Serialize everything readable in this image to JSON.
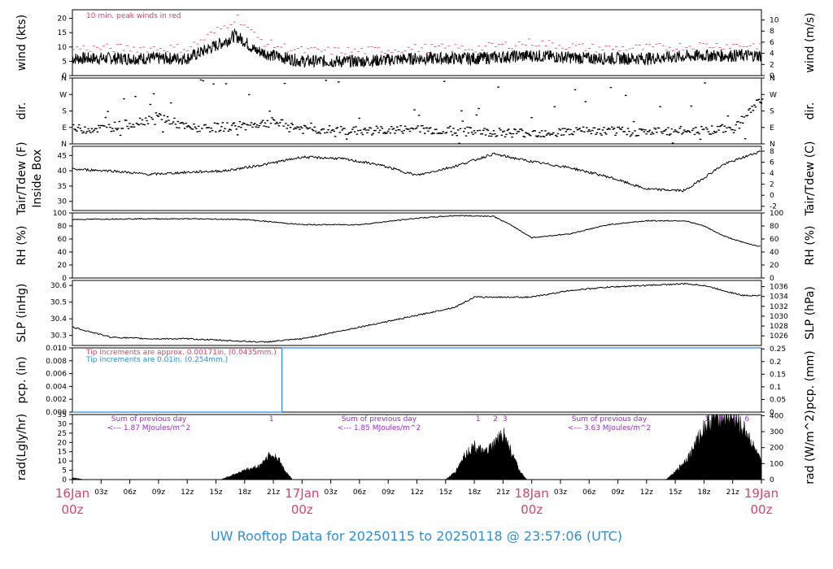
{
  "chart_data": {
    "type": "line",
    "title": "UW Rooftop Data for 20250115  to  20250118 @ 23:57:06  (UTC)",
    "x_axis": {
      "start": "2025-01-16T00:00Z",
      "end": "2025-01-19T00:00Z",
      "hour_ticks": [
        "03z",
        "06z",
        "09z",
        "12z",
        "15z",
        "18z",
        "21z"
      ],
      "day_labels": [
        {
          "date": "16Jan",
          "time": "00z"
        },
        {
          "date": "17Jan",
          "time": "00z"
        },
        {
          "date": "18Jan",
          "time": "00z"
        },
        {
          "date": "19Jan",
          "time": "00z"
        }
      ]
    },
    "panels": [
      {
        "id": "wind",
        "ylabel_left": "wind (kts)",
        "ylabel_right": "wind (m/s)",
        "yticks_left": [
          "0",
          "5",
          "10",
          "15",
          "20"
        ],
        "ylim_left": [
          0,
          23
        ],
        "yticks_right": [
          "0",
          "2",
          "4",
          "6",
          "8",
          "10"
        ],
        "annotation": "10 min. peak winds in red",
        "series": [
          {
            "color": "#000000",
            "hours": [
              0,
              6,
              12,
              14,
              16,
              17,
              18,
              19,
              20,
              21,
              24,
              30,
              36,
              42,
              48,
              54,
              60,
              66,
              72
            ],
            "values": [
              6,
              6,
              6,
              9,
              12,
              14,
              12,
              9,
              8,
              7,
              5,
              5,
              6,
              6,
              7,
              6,
              6,
              7,
              7
            ]
          },
          {
            "color": "#e0406a",
            "hours": [
              0,
              6,
              12,
              14,
              16,
              17,
              18,
              19,
              20,
              21,
              24,
              30,
              36,
              42,
              48,
              54,
              60,
              66,
              72
            ],
            "values": [
              9,
              9,
              9,
              13,
              17,
              20,
              17,
              13,
              11,
              10,
              8,
              8,
              9,
              9,
              11,
              9,
              9,
              10,
              10
            ]
          }
        ]
      },
      {
        "id": "dir",
        "ylabel_left": "dir.",
        "ylabel_right": "dir.",
        "yticks_left": [
          "N",
          "E",
          "S",
          "W",
          "N"
        ],
        "yticks_right": [
          "N",
          "E",
          "S",
          "W",
          "N"
        ],
        "ylim_left": [
          0,
          360
        ],
        "series": [
          {
            "color": "#000000",
            "hours": [
              0,
              3,
              6,
              9,
              12,
              15,
              18,
              21,
              24,
              30,
              36,
              42,
              48,
              54,
              60,
              66,
              69,
              72
            ],
            "values": [
              80,
              85,
              110,
              150,
              85,
              90,
              100,
              120,
              80,
              70,
              80,
              65,
              60,
              70,
              65,
              75,
              85,
              250
            ]
          }
        ]
      },
      {
        "id": "temp",
        "ylabel_left": "Tair/Tdew (F)",
        "ylabel_left2": "Inside Box",
        "ylabel_right": "Tair/Tdew (C)",
        "yticks_left": [
          "30",
          "35",
          "40",
          "45"
        ],
        "ylim_left": [
          27,
          48
        ],
        "yticks_right": [
          "-2",
          "0",
          "2",
          "4",
          "6",
          "8"
        ],
        "series": [
          {
            "color": "#000000",
            "hours": [
              0,
              4,
              8,
              12,
              16,
              20,
              24,
              28,
              32,
              36,
              40,
              44,
              48,
              52,
              56,
              60,
              64,
              68,
              72
            ],
            "values": [
              40.5,
              40,
              38.8,
              39.5,
              40,
              42,
              44.5,
              44,
              42,
              38.5,
              41.5,
              45.5,
              43,
              41,
              38,
              34,
              33.5,
              42,
              46.5
            ]
          }
        ]
      },
      {
        "id": "rh",
        "ylabel_left": "RH (%)",
        "ylabel_right": "RH (%)",
        "yticks_left": [
          "0",
          "20",
          "40",
          "60",
          "80",
          "100"
        ],
        "ylim_left": [
          0,
          100
        ],
        "yticks_right": [
          "0",
          "20",
          "40",
          "60",
          "80",
          "100"
        ],
        "series": [
          {
            "color": "#000000",
            "hours": [
              0,
              6,
              12,
              18,
              24,
              30,
              36,
              40,
              44,
              46,
              48,
              52,
              56,
              60,
              64,
              66,
              68,
              70,
              72
            ],
            "values": [
              90,
              91,
              91,
              90,
              82,
              82,
              92,
              96,
              95,
              80,
              62,
              68,
              82,
              88,
              88,
              80,
              65,
              55,
              48
            ]
          }
        ]
      },
      {
        "id": "slp",
        "ylabel_left": "SLP (inHg)",
        "ylabel_right": "SLP (hPa)",
        "yticks_left": [
          "30.3",
          "30.4",
          "30.5",
          "30.6"
        ],
        "ylim_left": [
          30.24,
          30.63
        ],
        "yticks_right": [
          "1026",
          "1028",
          "1030",
          "1032",
          "1034",
          "1036"
        ],
        "series": [
          {
            "color": "#000000",
            "hours": [
              0,
              4,
              8,
              12,
              16,
              20,
              24,
              30,
              36,
              40,
              42,
              48,
              52,
              56,
              60,
              64,
              66,
              68,
              70,
              72
            ],
            "values": [
              30.35,
              30.29,
              30.28,
              30.28,
              30.27,
              30.26,
              30.28,
              30.35,
              30.42,
              30.47,
              30.53,
              30.53,
              30.57,
              30.59,
              30.6,
              30.61,
              30.6,
              30.57,
              30.54,
              30.54
            ]
          }
        ]
      },
      {
        "id": "pcp",
        "ylabel_left": "pcp. (in)",
        "ylabel_right": "pcp. (mm)",
        "yticks_left": [
          "0.000",
          "0.002",
          "0.004",
          "0.006",
          "0.008",
          "0.010"
        ],
        "ylim_left": [
          0,
          0.01
        ],
        "yticks_right": [
          "0",
          "0.05",
          "0.1",
          "0.15",
          "0.2",
          "0.25"
        ],
        "notes": [
          {
            "text": "Tip increments are approx. 0.00171in. (0.0435mm.)",
            "color": "#e0406a"
          },
          {
            "text": "Tip increments are 0.01in. (0.254mm.)",
            "color": "#2d8ee0"
          }
        ],
        "series": [
          {
            "color": "#2d8ee0",
            "hours": [
              0,
              21.9,
              21.9,
              72
            ],
            "values": [
              0,
              0,
              0.01,
              0.01
            ]
          }
        ]
      },
      {
        "id": "rad",
        "type": "area",
        "ylabel_left": "rad(Lgly/hr)",
        "ylabel_right": "rad (W/m^2)",
        "yticks_left": [
          "0",
          "5",
          "10",
          "15",
          "20",
          "25",
          "30",
          "35"
        ],
        "ylim_left": [
          0,
          35
        ],
        "yticks_right": [
          "0",
          "100",
          "200",
          "300",
          "400"
        ],
        "daily_sums": [
          {
            "text": "Sum of previous day",
            "value": "<--- 1.87 MJoules/m^2"
          },
          {
            "text": "Sum of previous day",
            "value": "<--- 1.85 MJoules/m^2"
          },
          {
            "text": "Sum of previous day",
            "value": "<--- 3.63 MJoules/m^2"
          }
        ],
        "markers": [
          {
            "hour": 20.8,
            "label": "1"
          },
          {
            "hour": 42.4,
            "label": "1"
          },
          {
            "hour": 44.2,
            "label": "2"
          },
          {
            "hour": 45.2,
            "label": "3"
          },
          {
            "hour": 66.3,
            "label": "1"
          },
          {
            "hour": 67.7,
            "label": "3"
          },
          {
            "hour": 69.2,
            "label": "5"
          },
          {
            "hour": 70.5,
            "label": "6"
          }
        ],
        "series": [
          {
            "color": "#000000",
            "hours": [
              0,
              0.6,
              1.2,
              15.5,
              16.5,
              18,
              19.5,
              20.5,
              21.5,
              22.2,
              23,
              24,
              39,
              40,
              41,
              42,
              43,
              44,
              45,
              46,
              46.8,
              47.5,
              48,
              62,
              63,
              64.5,
              66,
              67.5,
              69,
              70.5,
              71.5,
              72
            ],
            "values": [
              1,
              0.5,
              0,
              0,
              2,
              5,
              7,
              13,
              11,
              5,
              0,
              0,
              0,
              4,
              13,
              18,
              14,
              18,
              25,
              13,
              4,
              0,
              0,
              0,
              4,
              13,
              28,
              35,
              33,
              25,
              14,
              9
            ]
          }
        ]
      }
    ]
  }
}
